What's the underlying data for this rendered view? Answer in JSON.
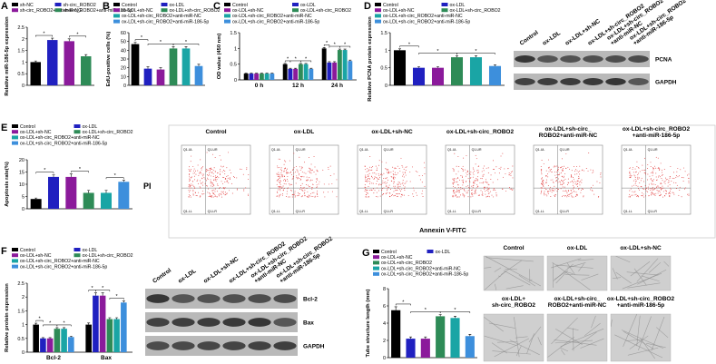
{
  "chart_data": [
    {
      "panel": "A",
      "type": "bar",
      "y_label": "Relative miR-186-5p expression",
      "categories": [
        "sh-NC",
        "sh-circ_ROBO2",
        "sh-circ_ROBO2+anti-miR-NC",
        "sh-circ_ROBO2+anti-miR-186-5p"
      ],
      "colors": [
        "#000000",
        "#2020c0",
        "#8b1a9b",
        "#2e8b57"
      ],
      "values": [
        1.0,
        1.95,
        1.9,
        1.25
      ],
      "errors": [
        0.05,
        0.08,
        0.1,
        0.07
      ],
      "ylim": [
        0,
        2.5
      ],
      "yticks": [
        0,
        0.5,
        1,
        1.5,
        2,
        2.5
      ],
      "comparisons": [
        [
          0,
          1
        ],
        [
          2,
          3
        ]
      ],
      "comparison_label": "*"
    },
    {
      "panel": "B",
      "type": "bar",
      "y_label": "EdU-positive cells (%)",
      "categories": [
        "Control",
        "ox-LDL",
        "ox-LDL+sh-NC",
        "ox-LDL+sh-circ_ROBO2",
        "ox-LDL+sh-circ_ROBO2+anti-miR-NC",
        "ox-LDL+sh-circ_ROBO2+anti-miR-186-5p"
      ],
      "colors": [
        "#000000",
        "#2020c0",
        "#8b1a9b",
        "#2e8b57",
        "#1aa5a5",
        "#3d8fdc"
      ],
      "values": [
        47,
        19,
        18,
        42,
        42,
        22
      ],
      "errors": [
        2,
        2,
        2,
        2,
        2,
        2
      ],
      "ylim": [
        0,
        60
      ],
      "yticks": [
        0,
        10,
        20,
        30,
        40,
        50,
        60
      ],
      "comparisons": [
        [
          0,
          1
        ],
        [
          1,
          3
        ],
        [
          3,
          5
        ]
      ],
      "comparison_label": "*"
    },
    {
      "panel": "C",
      "type": "grouped_bar",
      "y_label": "OD value (450 nm)",
      "categories": [
        "0 h",
        "12 h",
        "24 h"
      ],
      "series": [
        {
          "name": "Control",
          "color": "#000000",
          "values": [
            0.2,
            0.5,
            1.0
          ],
          "errors": [
            0.01,
            0.02,
            0.03
          ]
        },
        {
          "name": "ox-LDL",
          "color": "#2020c0",
          "values": [
            0.2,
            0.35,
            0.55
          ],
          "errors": [
            0.01,
            0.02,
            0.03
          ]
        },
        {
          "name": "ox-LDL+sh-NC",
          "color": "#8b1a9b",
          "values": [
            0.2,
            0.35,
            0.55
          ],
          "errors": [
            0.01,
            0.02,
            0.03
          ]
        },
        {
          "name": "ox-LDL+sh-circ_ROBO2",
          "color": "#2e8b57",
          "values": [
            0.2,
            0.5,
            0.95
          ],
          "errors": [
            0.01,
            0.02,
            0.03
          ]
        },
        {
          "name": "ox-LDL+sh-circ_ROBO2+anti-miR-NC",
          "color": "#1aa5a5",
          "values": [
            0.2,
            0.5,
            0.95
          ],
          "errors": [
            0.01,
            0.02,
            0.03
          ]
        },
        {
          "name": "ox-LDL+sh-circ_ROBO2+anti-miR-186-5p",
          "color": "#3d8fdc",
          "values": [
            0.2,
            0.35,
            0.6
          ],
          "errors": [
            0.01,
            0.02,
            0.03
          ]
        }
      ],
      "ylim": [
        0,
        1.5
      ],
      "yticks": [
        0,
        0.5,
        1,
        1.5
      ],
      "comparisons": [
        [
          1,
          0,
          1
        ],
        [
          1,
          1,
          3
        ],
        [
          1,
          3,
          5
        ],
        [
          2,
          0,
          1
        ],
        [
          2,
          1,
          3
        ],
        [
          2,
          3,
          5
        ]
      ],
      "comparison_label": "*"
    },
    {
      "panel": "D",
      "type": "bar",
      "y_label": "Relative PCNA protein expression",
      "categories": [
        "Control",
        "ox-LDL",
        "ox-LDL+sh-NC",
        "ox-LDL+sh-circ_ROBO2",
        "ox-LDL+sh-circ_ROBO2+anti-miR-NC",
        "ox-LDL+sh-circ_ROBO2+anti-miR-186-5p"
      ],
      "colors": [
        "#000000",
        "#2020c0",
        "#8b1a9b",
        "#2e8b57",
        "#1aa5a5",
        "#3d8fdc"
      ],
      "values": [
        1.0,
        0.5,
        0.5,
        0.8,
        0.8,
        0.55
      ],
      "errors": [
        0.04,
        0.03,
        0.03,
        0.04,
        0.04,
        0.03
      ],
      "ylim": [
        0,
        1.5
      ],
      "yticks": [
        0,
        0.5,
        1,
        1.5
      ],
      "comparisons": [
        [
          0,
          1
        ],
        [
          1,
          3
        ],
        [
          3,
          5
        ]
      ],
      "comparison_label": "*"
    },
    {
      "panel": "E",
      "type": "bar",
      "y_label": "Apoptosis rate(%)",
      "categories": [
        "Control",
        "ox-LDL",
        "ox-LDL+sh-NC",
        "ox-LDL+sh-circ_ROBO2",
        "ox-LDL+sh-circ_ROBO2+anti-miR-NC",
        "ox-LDL+sh-circ_ROBO2+anti-miR-186-5p"
      ],
      "colors": [
        "#000000",
        "#2020c0",
        "#8b1a9b",
        "#2e8b57",
        "#1aa5a5",
        "#3d8fdc"
      ],
      "values": [
        4,
        13,
        13,
        6.5,
        6.5,
        11
      ],
      "errors": [
        0.4,
        0.8,
        1.2,
        1,
        1,
        0.6
      ],
      "ylim": [
        0,
        20
      ],
      "yticks": [
        0,
        5,
        10,
        15,
        20
      ],
      "comparisons": [
        [
          0,
          1
        ],
        [
          2,
          3
        ],
        [
          4,
          5
        ]
      ],
      "comparison_label": "*"
    },
    {
      "panel": "F",
      "type": "grouped_bar",
      "y_label": "Relative protein expression",
      "categories": [
        "Bcl-2",
        "Bax"
      ],
      "series": [
        {
          "name": "Control",
          "color": "#000000",
          "values": [
            1.0,
            1.0
          ],
          "errors": [
            0.05,
            0.06
          ]
        },
        {
          "name": "ox-LDL",
          "color": "#2020c0",
          "values": [
            0.5,
            2.05
          ],
          "errors": [
            0.03,
            0.1
          ]
        },
        {
          "name": "ox-LDL+sh-NC",
          "color": "#8b1a9b",
          "values": [
            0.5,
            2.05
          ],
          "errors": [
            0.03,
            0.1
          ]
        },
        {
          "name": "ox-LDL+sh-circ_ROBO2",
          "color": "#2e8b57",
          "values": [
            0.85,
            1.2
          ],
          "errors": [
            0.04,
            0.05
          ]
        },
        {
          "name": "ox-LDL+sh-circ_ROBO2+anti-miR-NC",
          "color": "#1aa5a5",
          "values": [
            0.85,
            1.2
          ],
          "errors": [
            0.04,
            0.05
          ]
        },
        {
          "name": "ox-LDL+sh-circ_ROBO2+anti-miR-186-5p",
          "color": "#3d8fdc",
          "values": [
            0.55,
            1.8
          ],
          "errors": [
            0.03,
            0.06
          ]
        }
      ],
      "ylim": [
        0,
        2.5
      ],
      "yticks": [
        0,
        0.5,
        1,
        1.5,
        2,
        2.5
      ],
      "comparisons": [
        [
          0,
          0,
          1
        ],
        [
          0,
          1,
          3
        ],
        [
          0,
          3,
          5
        ],
        [
          1,
          0,
          1
        ],
        [
          1,
          1,
          3
        ],
        [
          1,
          3,
          5
        ]
      ],
      "comparison_label": "*"
    },
    {
      "panel": "G",
      "type": "bar",
      "y_label": "Tube structure length (mm)",
      "categories": [
        "Control",
        "ox-LDL",
        "ox-LDL+sh-NC",
        "ox-LDL+sh-circ_ROBO2",
        "ox-LDL+sh-circ_ROBO2+anti-miR-NC",
        "ox-LDL+sh-circ_ROBO2+anti-miR-186-5p"
      ],
      "colors": [
        "#000000",
        "#2020c0",
        "#8b1a9b",
        "#2e8b57",
        "#1aa5a5",
        "#3d8fdc"
      ],
      "values": [
        5.5,
        2.2,
        2.2,
        4.8,
        4.6,
        2.5
      ],
      "errors": [
        0.4,
        0.2,
        0.2,
        0.2,
        0.2,
        0.2
      ],
      "ylim": [
        0,
        8
      ],
      "yticks": [
        0,
        2,
        4,
        6,
        8
      ],
      "comparisons": [
        [
          0,
          1
        ],
        [
          1,
          3
        ],
        [
          3,
          5
        ]
      ],
      "comparison_label": "*"
    }
  ],
  "blot_D": {
    "lanes": [
      [
        "Control"
      ],
      [
        "ox-LDL"
      ],
      [
        "ox-LDL+sh-NC"
      ],
      [
        "ox-LDL+sh-circ_ROBO2"
      ],
      [
        "ox-LDL+sh-circ_ROBO2",
        "+anti-miR-NC"
      ],
      [
        "ox-LDL+sh-circ_ROBO2",
        "+anti-miR-186-5p"
      ]
    ],
    "rows": [
      "PCNA",
      "GAPDH"
    ]
  },
  "flow_E": {
    "titles": [
      [
        "Control"
      ],
      [
        "ox-LDL"
      ],
      [
        "ox-LDL+sh-NC"
      ],
      [
        "ox-LDL+sh-circ_ROBO2"
      ],
      [
        "ox-LDL+sh-circ_",
        "ROBO2+anti-miR-NC"
      ],
      [
        "ox-LDL+sh-circ_ROBO2",
        "+anti-miR-186-5p"
      ]
    ],
    "y_label": "PI",
    "x_label": "Annexin V-FITC",
    "quadrants": [
      "Q1-UL",
      "Q1-UR",
      "Q1-LL",
      "Q1-LR"
    ]
  },
  "blot_F": {
    "lanes": [
      [
        "Control"
      ],
      [
        "ox-LDL"
      ],
      [
        "ox-LDL+sh-NC"
      ],
      [
        "ox-LDL+sh-circ_ROBO2"
      ],
      [
        "ox-LDL+sh-circ_ROBO2",
        "+anti-miR-NC"
      ],
      [
        "ox-LDL+sh-circ_ROBO2",
        "+anti-miR-186-5p"
      ]
    ],
    "rows": [
      "Bcl-2",
      "Bax",
      "GAPDH"
    ]
  },
  "images_G": {
    "titles": [
      [
        "Control"
      ],
      [
        "ox-LDL"
      ],
      [
        "ox-LDL+sh-NC"
      ],
      [
        "ox-LDL+",
        "sh-circ_ROBO2"
      ],
      [
        "ox-LDL+sh-circ_",
        "ROBO2+anti-miR-NC"
      ],
      [
        "ox-LDL+sh-circ_ROBO2",
        "+anti-miR-186-5p"
      ]
    ]
  }
}
